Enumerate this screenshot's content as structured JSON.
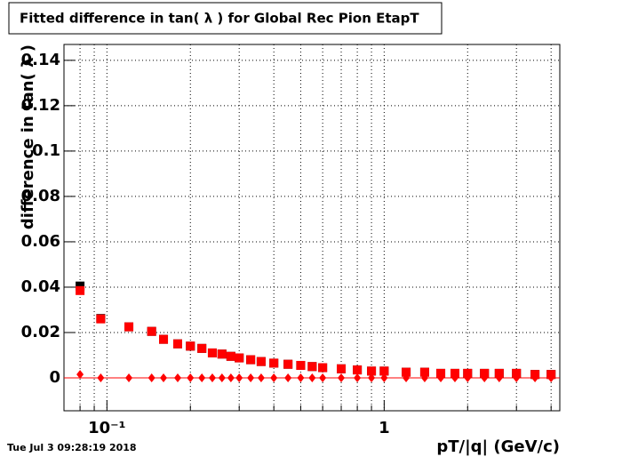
{
  "chart_data": {
    "type": "scatter",
    "title": "Fitted difference in tan( λ ) for Global Rec Pion EtapT",
    "x_label": "pT/|q| (GeV/c)",
    "y_label": "difference in tan( λ )",
    "timestamp": "Tue Jul  3 09:28:19 2018",
    "log_x": true,
    "grid": true,
    "xlim": [
      0.07,
      4.3
    ],
    "ylim": [
      -0.0145,
      0.147
    ],
    "xticks": [
      {
        "value": 0.1,
        "label": "10⁻¹"
      },
      1
    ],
    "xgrid_minor": [
      0.08,
      0.09,
      0.2,
      0.3,
      0.4,
      0.5,
      0.6,
      0.7,
      0.8,
      0.9,
      2,
      3,
      4
    ],
    "yticks": [
      0,
      0.02,
      0.04,
      0.06,
      0.08,
      0.1,
      0.12,
      0.14
    ],
    "x": [
      0.08,
      0.095,
      0.12,
      0.145,
      0.16,
      0.18,
      0.2,
      0.22,
      0.24,
      0.26,
      0.28,
      0.3,
      0.33,
      0.36,
      0.4,
      0.45,
      0.5,
      0.55,
      0.6,
      0.7,
      0.8,
      0.9,
      1.0,
      1.2,
      1.4,
      1.6,
      1.8,
      2.0,
      2.3,
      2.6,
      3.0,
      3.5,
      4.0
    ],
    "series": [
      {
        "name": "mean",
        "color": "#000000",
        "marker": "square",
        "values": [
          0.0405,
          0.0262,
          0.0225,
          0.0205,
          0.017,
          0.015,
          0.014,
          0.013,
          0.011,
          0.0105,
          0.0095,
          0.0088,
          0.008,
          0.0072,
          0.0065,
          0.006,
          0.0055,
          0.005,
          0.0045,
          0.004,
          0.0035,
          0.003,
          0.003,
          0.0025,
          0.0025,
          0.002,
          0.002,
          0.002,
          0.002,
          0.002,
          0.002,
          0.0015,
          0.0015
        ]
      },
      {
        "name": "fitted",
        "color": "#ff0000",
        "marker": "square",
        "values": [
          0.0385,
          0.026,
          0.0225,
          0.0205,
          0.017,
          0.015,
          0.014,
          0.013,
          0.011,
          0.0105,
          0.0095,
          0.0088,
          0.008,
          0.0072,
          0.0065,
          0.006,
          0.0055,
          0.005,
          0.0045,
          0.004,
          0.0035,
          0.003,
          0.003,
          0.0025,
          0.0025,
          0.002,
          0.002,
          0.002,
          0.002,
          0.002,
          0.002,
          0.0015,
          0.0015
        ]
      },
      {
        "name": "sigma",
        "color": "#ff0000",
        "marker": "diamond",
        "values": [
          0.0015,
          0,
          0,
          0,
          0,
          0,
          0,
          0,
          0,
          0,
          0,
          0,
          0,
          0,
          0,
          0,
          0,
          0,
          0,
          0,
          0,
          0,
          0,
          0,
          0,
          0,
          0,
          0,
          0,
          0,
          0,
          0,
          0
        ]
      }
    ]
  }
}
